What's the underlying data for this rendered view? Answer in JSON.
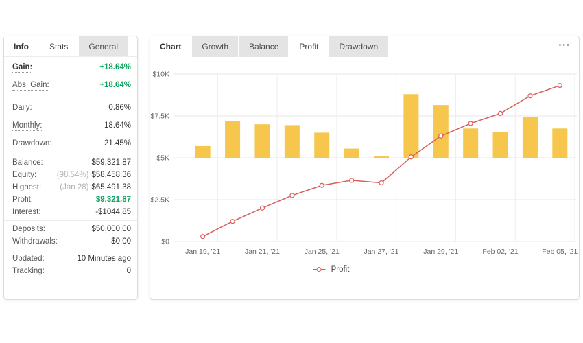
{
  "colors": {
    "gain_green": "#0BA15C",
    "bar_yellow": "#F6C64D",
    "line_red": "#D95C5C",
    "muted_gray": "#B2B2B2"
  },
  "left_panel": {
    "tabs": [
      {
        "label": "Info",
        "style": "active-bold"
      },
      {
        "label": "Stats",
        "style": "plain"
      },
      {
        "label": "General",
        "style": "chip"
      }
    ],
    "sections": [
      {
        "rows": [
          {
            "label": "Gain:",
            "value": "+18.64%",
            "value_style": "green",
            "label_bold": true,
            "dotted": true
          },
          {
            "label": "Abs. Gain:",
            "value": "+18.64%",
            "value_style": "green",
            "dotted": true
          }
        ]
      },
      {
        "rows": [
          {
            "label": "Daily:",
            "value": "0.86%",
            "dotted": true
          },
          {
            "label": "Monthly:",
            "value": "18.64%",
            "dotted": true
          },
          {
            "label": "Drawdown:",
            "value": "21.45%"
          }
        ]
      },
      {
        "rows": [
          {
            "label": "Balance:",
            "value": "$59,321.87"
          },
          {
            "label": "Equity:",
            "value": "$58,458.36",
            "muted_prefix": "(98.54%)"
          },
          {
            "label": "Highest:",
            "value": "$65,491.38",
            "muted_prefix": "(Jan 28)"
          },
          {
            "label": "Profit:",
            "value": "$9,321.87",
            "value_style": "green"
          },
          {
            "label": "Interest:",
            "value": "-$1044.85"
          }
        ]
      },
      {
        "rows": [
          {
            "label": "Deposits:",
            "value": "$50,000.00"
          },
          {
            "label": "Withdrawals:",
            "value": "$0.00"
          }
        ]
      },
      {
        "rows": [
          {
            "label": "Updated:",
            "value": "10 Minutes ago"
          },
          {
            "label": "Tracking:",
            "value": "0"
          }
        ]
      }
    ]
  },
  "right_panel": {
    "tabs": [
      {
        "label": "Chart",
        "style": "active-bold"
      },
      {
        "label": "Growth",
        "style": "chip"
      },
      {
        "label": "Balance",
        "style": "chip"
      },
      {
        "label": "Profit",
        "style": "plain"
      },
      {
        "label": "Drawdown",
        "style": "chip"
      }
    ],
    "menu_icon": "ellipsis-icon",
    "chart_data": {
      "type": "combo",
      "title": "",
      "num_slots": 13,
      "x_tick_labels": [
        "Jan 19, '21",
        "Jan 21, '21",
        "Jan 25, '21",
        "Jan 27, '21",
        "Jan 29, '21",
        "Feb 02, '21",
        "Feb 05, '21"
      ],
      "x_tick_slots": [
        0,
        2,
        4,
        6,
        8,
        10,
        12
      ],
      "y_ticks": [
        {
          "label": "$0",
          "value": 0
        },
        {
          "label": "$2.5K",
          "value": 2500
        },
        {
          "label": "$5K",
          "value": 5000
        },
        {
          "label": "$7.5K",
          "value": 7500
        },
        {
          "label": "$10K",
          "value": 10000
        }
      ],
      "ylim": [
        0,
        10000
      ],
      "grid": true,
      "legend_position": "bottom-center",
      "series": [
        {
          "name": "Daily bars",
          "type": "bar",
          "color": "#F6C64D",
          "baseline": 5000,
          "values": [
            5700,
            7200,
            7000,
            6950,
            6500,
            5550,
            5080,
            8800,
            8150,
            6750,
            6550,
            7450,
            6750
          ]
        },
        {
          "name": "Profit",
          "type": "line",
          "color": "#D95C5C",
          "marker": "open-circle",
          "values": [
            300,
            1200,
            2000,
            2750,
            3350,
            3650,
            3500,
            5050,
            6300,
            7050,
            7650,
            8700,
            9320
          ]
        }
      ],
      "legend": [
        {
          "label": "Profit",
          "color": "#D95C5C"
        }
      ]
    }
  }
}
